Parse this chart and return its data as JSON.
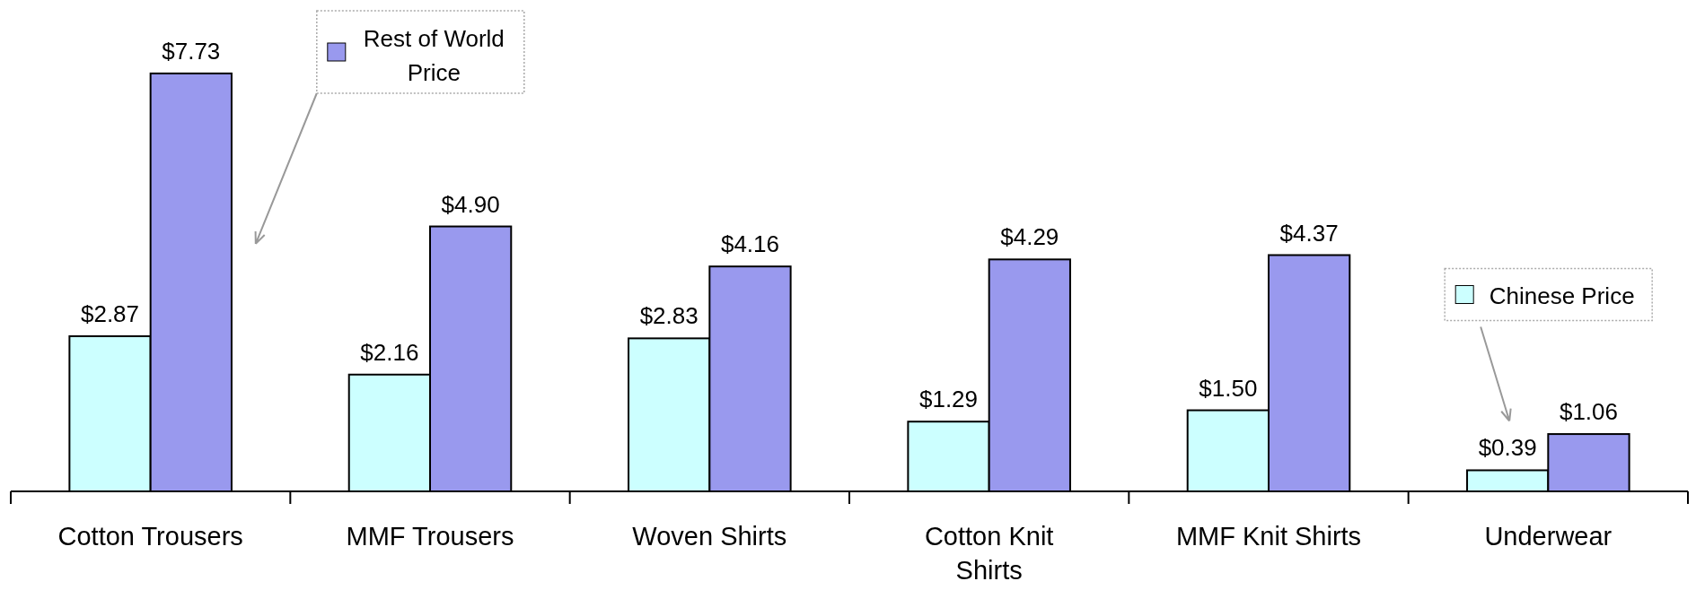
{
  "chart_data": {
    "type": "bar",
    "categories": [
      "Cotton Trousers",
      "MMF Trousers",
      "Woven Shirts",
      "Cotton Knit Shirts",
      "MMF Knit Shirts",
      "Underwear"
    ],
    "series": [
      {
        "name": "Chinese Price",
        "color": "#ccffff",
        "values": [
          2.87,
          2.16,
          2.83,
          1.29,
          1.5,
          0.39
        ],
        "value_labels": [
          "$2.87",
          "$2.16",
          "$2.83",
          "$1.29",
          "$1.50",
          "$0.39"
        ]
      },
      {
        "name": "Rest of World Price",
        "color": "#9999ee",
        "values": [
          7.73,
          4.9,
          4.16,
          4.29,
          4.37,
          1.06
        ],
        "value_labels": [
          "$7.73",
          "$4.90",
          "$4.16",
          "$4.29",
          "$4.37",
          "$1.06"
        ]
      }
    ],
    "tick_labels": "x",
    "legend": "top"
  }
}
